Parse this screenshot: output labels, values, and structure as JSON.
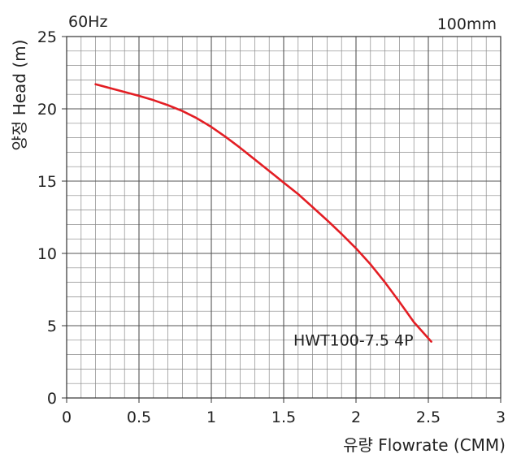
{
  "chart_data": {
    "type": "line",
    "corner_left": "60Hz",
    "corner_right": "100mm",
    "xlabel": "유량 Flowrate (CMM)",
    "ylabel": "양정 Head (m)",
    "xlim": [
      0,
      3
    ],
    "ylim": [
      0,
      25
    ],
    "x_ticks": [
      "0",
      "0.5",
      "1",
      "1.5",
      "2",
      "2.5",
      "3"
    ],
    "y_ticks": [
      "0",
      "5",
      "10",
      "15",
      "20",
      "25"
    ],
    "grid": true,
    "series": [
      {
        "name": "HWT100-7.5 4P",
        "color": "#e31e24",
        "x": [
          0.2,
          0.35,
          0.5,
          0.6,
          0.7,
          0.8,
          0.9,
          1.0,
          1.1,
          1.2,
          1.3,
          1.4,
          1.5,
          1.6,
          1.7,
          1.8,
          1.9,
          2.0,
          2.1,
          2.2,
          2.3,
          2.4,
          2.52
        ],
        "y": [
          21.7,
          21.3,
          20.9,
          20.6,
          20.25,
          19.85,
          19.35,
          18.75,
          18.05,
          17.3,
          16.5,
          15.7,
          14.9,
          14.1,
          13.2,
          12.3,
          11.35,
          10.35,
          9.25,
          8.0,
          6.65,
          5.25,
          3.9
        ]
      }
    ]
  }
}
